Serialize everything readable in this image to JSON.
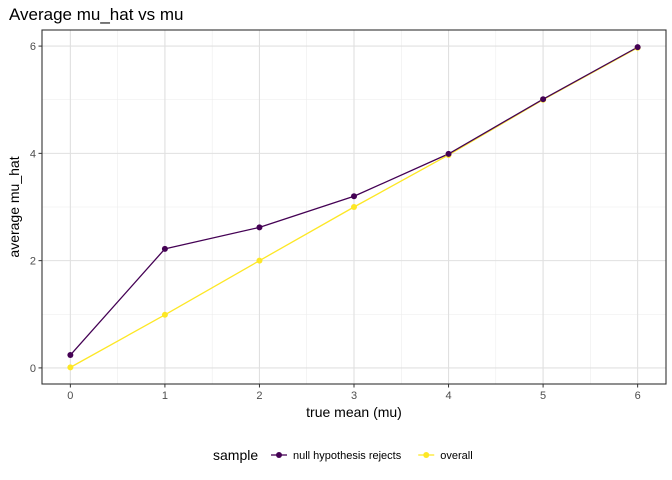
{
  "chart_data": {
    "type": "line",
    "title": "Average mu_hat vs mu",
    "xlabel": "true mean (mu)",
    "ylabel": "average mu_hat",
    "x": [
      0,
      1,
      2,
      3,
      4,
      5,
      6
    ],
    "xlim": [
      -0.3,
      6.3
    ],
    "ylim": [
      -0.3,
      6.3
    ],
    "x_ticks": [
      "0",
      "1",
      "2",
      "3",
      "4",
      "5",
      "6"
    ],
    "y_ticks": [
      "0",
      "2",
      "4",
      "6"
    ],
    "grid": true,
    "legend_position": "bottom",
    "legend_title": "sample",
    "series": [
      {
        "name": "null hypothesis rejects",
        "color": "#440154",
        "values": [
          0.24,
          2.22,
          2.62,
          3.2,
          3.99,
          5.01,
          5.98
        ]
      },
      {
        "name": "overall",
        "color": "#FDE725",
        "values": [
          0.01,
          0.99,
          2.0,
          3.0,
          3.97,
          5.0,
          5.97
        ]
      }
    ]
  }
}
